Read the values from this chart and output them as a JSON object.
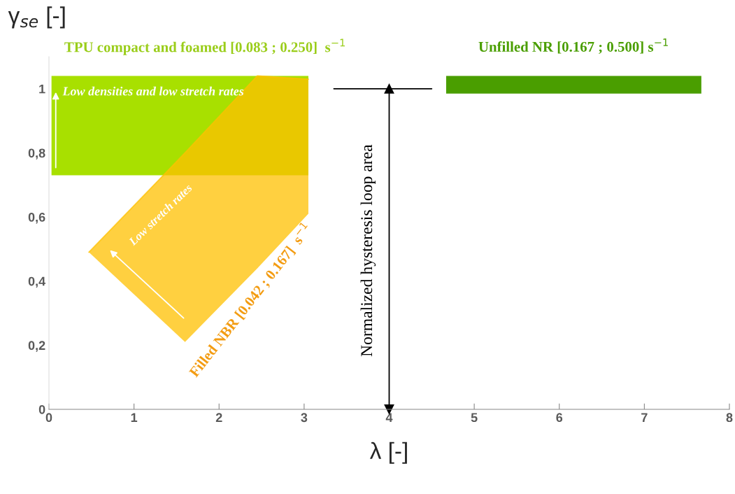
{
  "chart_data": {
    "type": "line",
    "xlabel": "λ [-]",
    "ylabel": "γ$_{se}$ [-]",
    "xlim": [
      0,
      8
    ],
    "xticks": [
      0,
      1,
      2,
      3,
      4,
      5,
      6,
      7,
      8
    ],
    "ylim": [
      0,
      1.1
    ],
    "yticks": [
      0,
      {
        "value": 0.2,
        "label": "0,2"
      },
      {
        "value": 0.4,
        "label": "0,4"
      },
      {
        "value": 0.6,
        "label": "0,6"
      },
      {
        "value": 0.8,
        "label": "0,8"
      },
      1
    ],
    "grid": false,
    "legend": false,
    "series": [
      {
        "name": "TPU compact and foamed [0.083 ; 0.250]  s$^{−1}$",
        "color": "#a8e000",
        "x": [
          0.03,
          3.05
        ],
        "values": [
          null,
          null
        ],
        "lower": [
          0.73,
          0.73
        ],
        "upper": [
          1.04,
          1.04
        ]
      },
      {
        "name": "Unfilled NR [0.167 ; 0.500] s$^{−1}$",
        "color": "#4a9e00",
        "x": [
          4.67,
          7.67
        ],
        "values": [
          null,
          null
        ],
        "lower": [
          0.985,
          0.985
        ],
        "upper": [
          1.04,
          1.04
        ]
      },
      {
        "name": "Filled NBR [0.042 ; 0.167]  s$^{−1}$",
        "color": "#ffc000",
        "x": [
          0.47,
          1.6,
          2.45,
          3.05
        ],
        "values": [
          0.49,
          0.8,
          1.04,
          1.03
        ],
        "lower": [
          0.49,
          0.21,
          0.44,
          0.61
        ],
        "upper": [
          0.49,
          0.8,
          1.04,
          1.03
        ]
      },
      {
        "type": "line",
        "color": "#000000",
        "marker": "triangle",
        "x": [
          4,
          4
        ],
        "values": [
          0,
          1
        ]
      },
      {
        "type": "line",
        "color": "#000000",
        "x": [
          3.35,
          4.5
        ],
        "values": [
          1,
          1
        ]
      }
    ],
    "annotations": [
      "Low densities and low stretch rates",
      "Low stretch rates",
      "Normalized hysteresis loop area"
    ]
  }
}
